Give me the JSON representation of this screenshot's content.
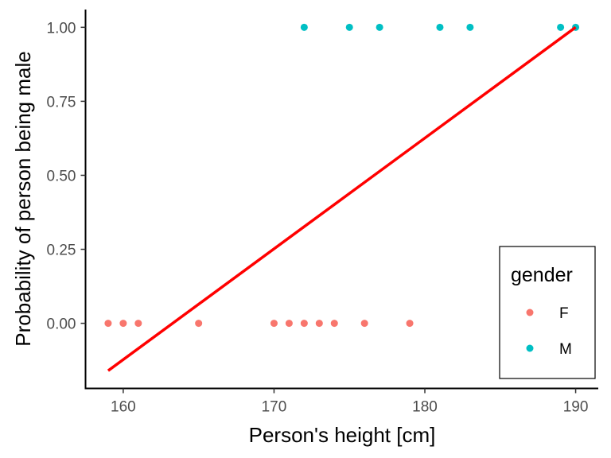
{
  "chart_data": {
    "type": "scatter",
    "title": "",
    "xlabel": "Person's height [cm]",
    "ylabel": "Probability of person being male",
    "xlim": [
      157.5,
      191.5
    ],
    "ylim": [
      -0.22,
      1.06
    ],
    "xticks": [
      160,
      170,
      180,
      190
    ],
    "xtick_labels": [
      "160",
      "170",
      "180",
      "190"
    ],
    "yticks": [
      0,
      0.25,
      0.5,
      0.75,
      1
    ],
    "ytick_labels": [
      "0.00",
      "0.25",
      "0.50",
      "0.75",
      "1.00"
    ],
    "grid": false,
    "legend_position": "bottom-right",
    "series": [
      {
        "name": "F",
        "color": "#F8766D",
        "points": [
          {
            "x": 159,
            "y": 0
          },
          {
            "x": 160,
            "y": 0
          },
          {
            "x": 161,
            "y": 0
          },
          {
            "x": 165,
            "y": 0
          },
          {
            "x": 170,
            "y": 0
          },
          {
            "x": 171,
            "y": 0
          },
          {
            "x": 172,
            "y": 0
          },
          {
            "x": 173,
            "y": 0
          },
          {
            "x": 174,
            "y": 0
          },
          {
            "x": 176,
            "y": 0
          },
          {
            "x": 179,
            "y": 0
          }
        ]
      },
      {
        "name": "M",
        "color": "#00BFC4",
        "points": [
          {
            "x": 172,
            "y": 1
          },
          {
            "x": 175,
            "y": 1
          },
          {
            "x": 177,
            "y": 1
          },
          {
            "x": 181,
            "y": 1
          },
          {
            "x": 183,
            "y": 1
          },
          {
            "x": 189,
            "y": 1
          },
          {
            "x": 190,
            "y": 1
          }
        ]
      }
    ],
    "fit_line": {
      "color": "#FF0000",
      "points": [
        {
          "x": 159,
          "y": -0.16
        },
        {
          "x": 190,
          "y": 1.0
        }
      ]
    },
    "legend": {
      "title": "gender",
      "entries": [
        {
          "label": "F",
          "color": "#F8766D"
        },
        {
          "label": "M",
          "color": "#00BFC4"
        }
      ]
    }
  }
}
